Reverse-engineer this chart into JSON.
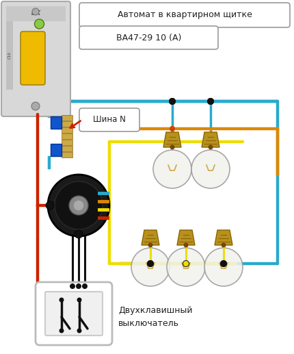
{
  "bg_color": "#ffffff",
  "title_box1": "Автомат в квартирном щитке",
  "title_box2": "ВА47-29 10 (А)",
  "label_shina": "Шина N",
  "label_switch": "Двухклавишный\nвыключатель",
  "wire_blue": "#29aacc",
  "wire_red": "#cc2200",
  "wire_orange": "#dd8800",
  "wire_yellow": "#eedd00",
  "wire_black": "#111111",
  "junction_color": "#111111",
  "text_color": "#222222",
  "box_fill": "#ffffff",
  "box_edge": "#999999",
  "breaker_body": "#e0e0e0",
  "breaker_handle": "#eebb00",
  "nbus_blue": "#1155cc",
  "nbus_gold": "#ccaa44",
  "jbox_dark": "#222222",
  "bulb_globe": "#f5f5f0",
  "bulb_socket": "#bb9930",
  "switch_white": "#f8f8f8",
  "switch_edge": "#cccccc"
}
